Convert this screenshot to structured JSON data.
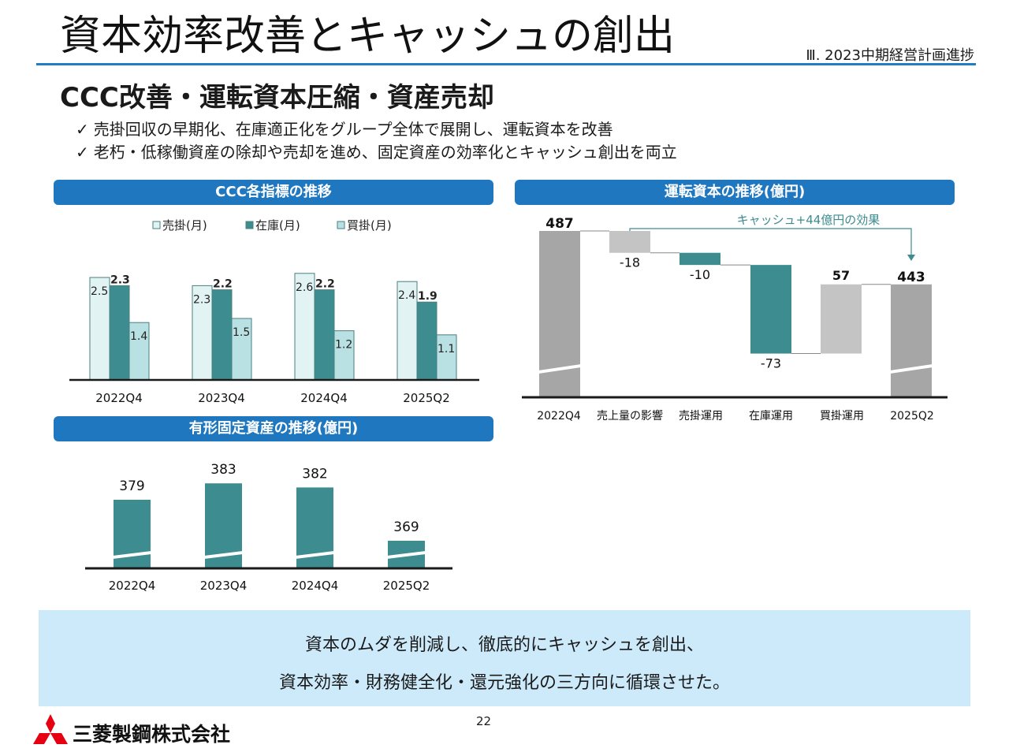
{
  "header": {
    "title": "資本効率改善とキャッシュの創出",
    "section": "Ⅲ. 2023中期経営計画進捗",
    "subtitle": "CCC改善・運転資本圧縮・資産売却"
  },
  "bullets": [
    {
      "check": "✓",
      "text": "売掛回収の早期化、在庫適正化をグループ全体で展開し、運転資本を改善"
    },
    {
      "check": "✓",
      "text": "老朽・低稼働資産の除却や売却を進め、固定資産の効率化とキャッシュ創出を両立"
    }
  ],
  "colors": {
    "accent": "#1f77c0",
    "teal": "#3d8c8f",
    "light_teal": "#e2f3f3",
    "mid_teal": "#b9e0e2",
    "grey": "#a6a6a6",
    "light_grey": "#c4c4c4",
    "banner": "#cdeafb",
    "logo_red": "#e60012"
  },
  "chart_data": [
    {
      "type": "bar",
      "title": "CCC各指標の推移",
      "categories": [
        "2022Q4",
        "2023Q4",
        "2024Q4",
        "2025Q2"
      ],
      "series": [
        {
          "name": "売掛(月)",
          "values": [
            2.5,
            2.3,
            2.6,
            2.4
          ]
        },
        {
          "name": "在庫(月)",
          "values": [
            2.3,
            2.2,
            2.2,
            1.9
          ]
        },
        {
          "name": "買掛(月)",
          "values": [
            1.4,
            1.5,
            1.2,
            1.1
          ]
        }
      ]
    },
    {
      "type": "bar",
      "title": "運転資本の推移(億円)",
      "subtype": "waterfall",
      "categories": [
        "2022Q4",
        "売上量の影響",
        "売掛運用",
        "在庫運用",
        "買掛運用",
        "2025Q2"
      ],
      "values": [
        487,
        -18,
        -10,
        -73,
        57,
        443
      ],
      "labels": [
        "487",
        "-18",
        "-10",
        "-73",
        "57",
        "443"
      ],
      "annotation": "キャッシュ+44億円の効果"
    },
    {
      "type": "bar",
      "title": "有形固定資産の推移(億円)",
      "categories": [
        "2022Q4",
        "2023Q4",
        "2024Q4",
        "2025Q2"
      ],
      "values": [
        379,
        383,
        382,
        369
      ]
    }
  ],
  "banner": {
    "line1": "資本のムダを削減し、徹底的にキャッシュを創出、",
    "line2": "資本効率・財務健全化・還元強化の三方向に循環させた。"
  },
  "footer": {
    "page": "22",
    "company": "三菱製鋼株式会社"
  }
}
